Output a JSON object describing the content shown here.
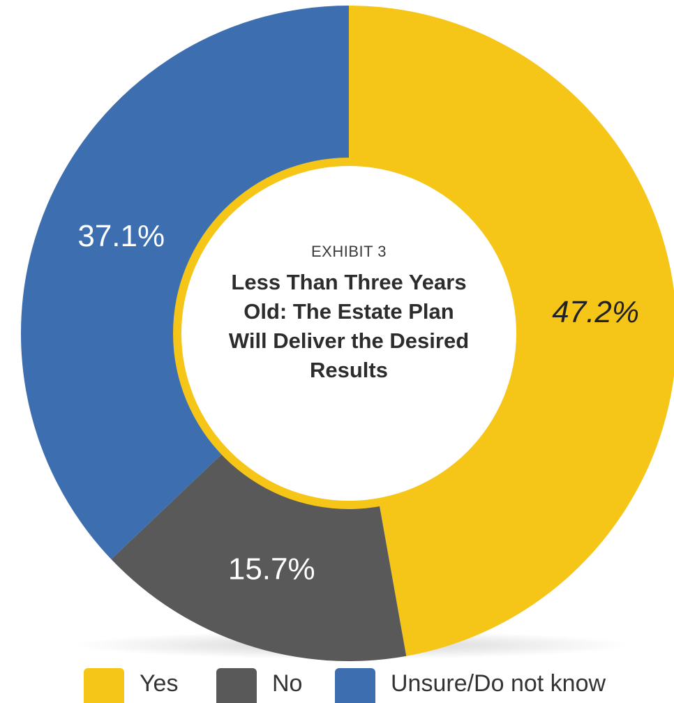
{
  "exhibit_label": "EXHIBIT 3",
  "title": "Less Than Three Years Old: The Estate Plan Will Deliver the Desired Results",
  "chart_data": {
    "type": "pie",
    "donut": true,
    "title": "Less Than Three Years Old: The Estate Plan Will Deliver the Desired Results",
    "categories": [
      "Yes",
      "No",
      "Unsure/Do not know"
    ],
    "values": [
      47.2,
      15.7,
      37.1
    ],
    "data_labels": [
      "47.2%",
      "15.7%",
      "37.1%"
    ],
    "colors": [
      "#f5c518",
      "#595959",
      "#3d6fb0"
    ],
    "start": "12 o'clock",
    "direction": "clockwise",
    "legend_position": "bottom"
  },
  "legend": [
    {
      "label": "Yes",
      "color": "#f5c518"
    },
    {
      "label": "No",
      "color": "#595959"
    },
    {
      "label": "Unsure/Do not know",
      "color": "#3d6fb0"
    }
  ]
}
